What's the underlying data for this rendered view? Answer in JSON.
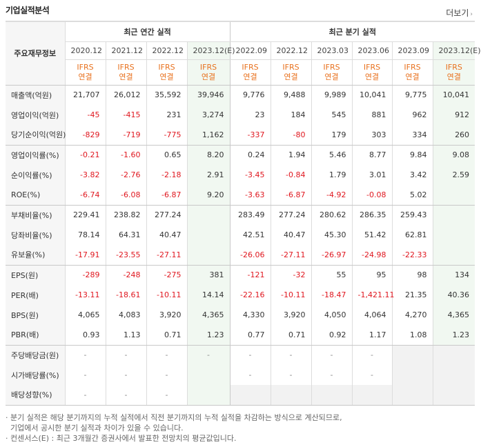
{
  "header": {
    "title": "기업실적분석",
    "more_label": "더보기",
    "more_chevron": "›"
  },
  "table": {
    "item_header": "주요재무정보",
    "annual_group": "최근 연간 실적",
    "quarter_group": "최근 분기 실적",
    "periods": [
      "2020.12",
      "2021.12",
      "2022.12",
      "2023.12(E)",
      "2022.09",
      "2022.12",
      "2023.03",
      "2023.06",
      "2023.09",
      "2023.12(E)"
    ],
    "standard_line1": "IFRS",
    "standard_line2": "연결",
    "rows": [
      {
        "label": "매출액(억원)",
        "values": [
          "21,707",
          "26,012",
          "35,592",
          "39,946",
          "9,776",
          "9,488",
          "9,989",
          "10,041",
          "9,775",
          "10,041"
        ]
      },
      {
        "label": "영업이익(억원)",
        "values": [
          "-45",
          "-415",
          "231",
          "3,274",
          "23",
          "184",
          "545",
          "881",
          "962",
          "912"
        ]
      },
      {
        "label": "당기순이익(억원)",
        "values": [
          "-829",
          "-719",
          "-775",
          "1,162",
          "-337",
          "-80",
          "179",
          "303",
          "334",
          "260"
        ]
      },
      {
        "label": "영업이익률(%)",
        "values": [
          "-0.21",
          "-1.60",
          "0.65",
          "8.20",
          "0.24",
          "1.94",
          "5.46",
          "8.77",
          "9.84",
          "9.08"
        ]
      },
      {
        "label": "순이익률(%)",
        "values": [
          "-3.82",
          "-2.76",
          "-2.18",
          "2.91",
          "-3.45",
          "-0.84",
          "1.79",
          "3.01",
          "3.42",
          "2.59"
        ]
      },
      {
        "label": "ROE(%)",
        "values": [
          "-6.74",
          "-6.08",
          "-6.87",
          "9.20",
          "-3.63",
          "-6.87",
          "-4.92",
          "-0.08",
          "5.02",
          ""
        ]
      },
      {
        "label": "부채비율(%)",
        "values": [
          "229.41",
          "238.82",
          "277.24",
          "",
          "283.49",
          "277.24",
          "280.62",
          "286.35",
          "259.43",
          ""
        ]
      },
      {
        "label": "당좌비율(%)",
        "values": [
          "78.14",
          "64.31",
          "40.47",
          "",
          "42.51",
          "40.47",
          "45.30",
          "51.42",
          "62.81",
          ""
        ]
      },
      {
        "label": "유보율(%)",
        "values": [
          "-17.91",
          "-23.55",
          "-27.11",
          "",
          "-26.06",
          "-27.11",
          "-26.97",
          "-24.98",
          "-22.33",
          ""
        ]
      },
      {
        "label": "EPS(원)",
        "values": [
          "-289",
          "-248",
          "-275",
          "381",
          "-121",
          "-32",
          "55",
          "95",
          "98",
          "134"
        ]
      },
      {
        "label": "PER(배)",
        "values": [
          "-13.11",
          "-18.61",
          "-10.11",
          "14.14",
          "-22.16",
          "-10.11",
          "-18.47",
          "-1,421.11",
          "21.35",
          "40.36"
        ]
      },
      {
        "label": "BPS(원)",
        "values": [
          "4,065",
          "4,083",
          "3,920",
          "4,365",
          "4,330",
          "3,920",
          "4,050",
          "4,064",
          "4,270",
          "4,365"
        ]
      },
      {
        "label": "PBR(배)",
        "values": [
          "0.93",
          "1.13",
          "0.71",
          "1.23",
          "0.77",
          "0.71",
          "0.92",
          "1.17",
          "1.08",
          "1.23"
        ]
      },
      {
        "label": "주당배당금(원)",
        "values": [
          "-",
          "-",
          "-",
          "-",
          "-",
          "-",
          "-",
          "-",
          "",
          ""
        ]
      },
      {
        "label": "시가배당률(%)",
        "values": [
          "-",
          "-",
          "-",
          "",
          "-",
          "-",
          "-",
          "-",
          "",
          ""
        ]
      },
      {
        "label": "배당성향(%)",
        "values": [
          "-",
          "-",
          "-",
          "",
          "",
          "",
          "",
          "",
          "",
          ""
        ]
      }
    ],
    "empty_cells": [
      [
        13,
        8
      ],
      [
        13,
        9
      ],
      [
        14,
        8
      ],
      [
        14,
        9
      ],
      [
        15,
        4
      ],
      [
        15,
        5
      ],
      [
        15,
        6
      ],
      [
        15,
        7
      ],
      [
        15,
        8
      ],
      [
        15,
        9
      ]
    ]
  },
  "notes": [
    "· 분기 실적은 해당 분기까지의 누적 실적에서 직전 분기까지의 누적 실적을 차감하는 방식으로 계산되므로,",
    "  기업에서 공시한 분기 실적과 차이가 있을 수 있습니다.",
    "· 컨센서스(E) : 최근 3개월간 증권사에서 발표한 전망치의 평균값입니다."
  ],
  "colors": {
    "negative": "#e0161e",
    "ifrs_text": "#e8711e",
    "estimate_bg": "#f1f8f1",
    "item_bg": "#f6f6f6"
  }
}
